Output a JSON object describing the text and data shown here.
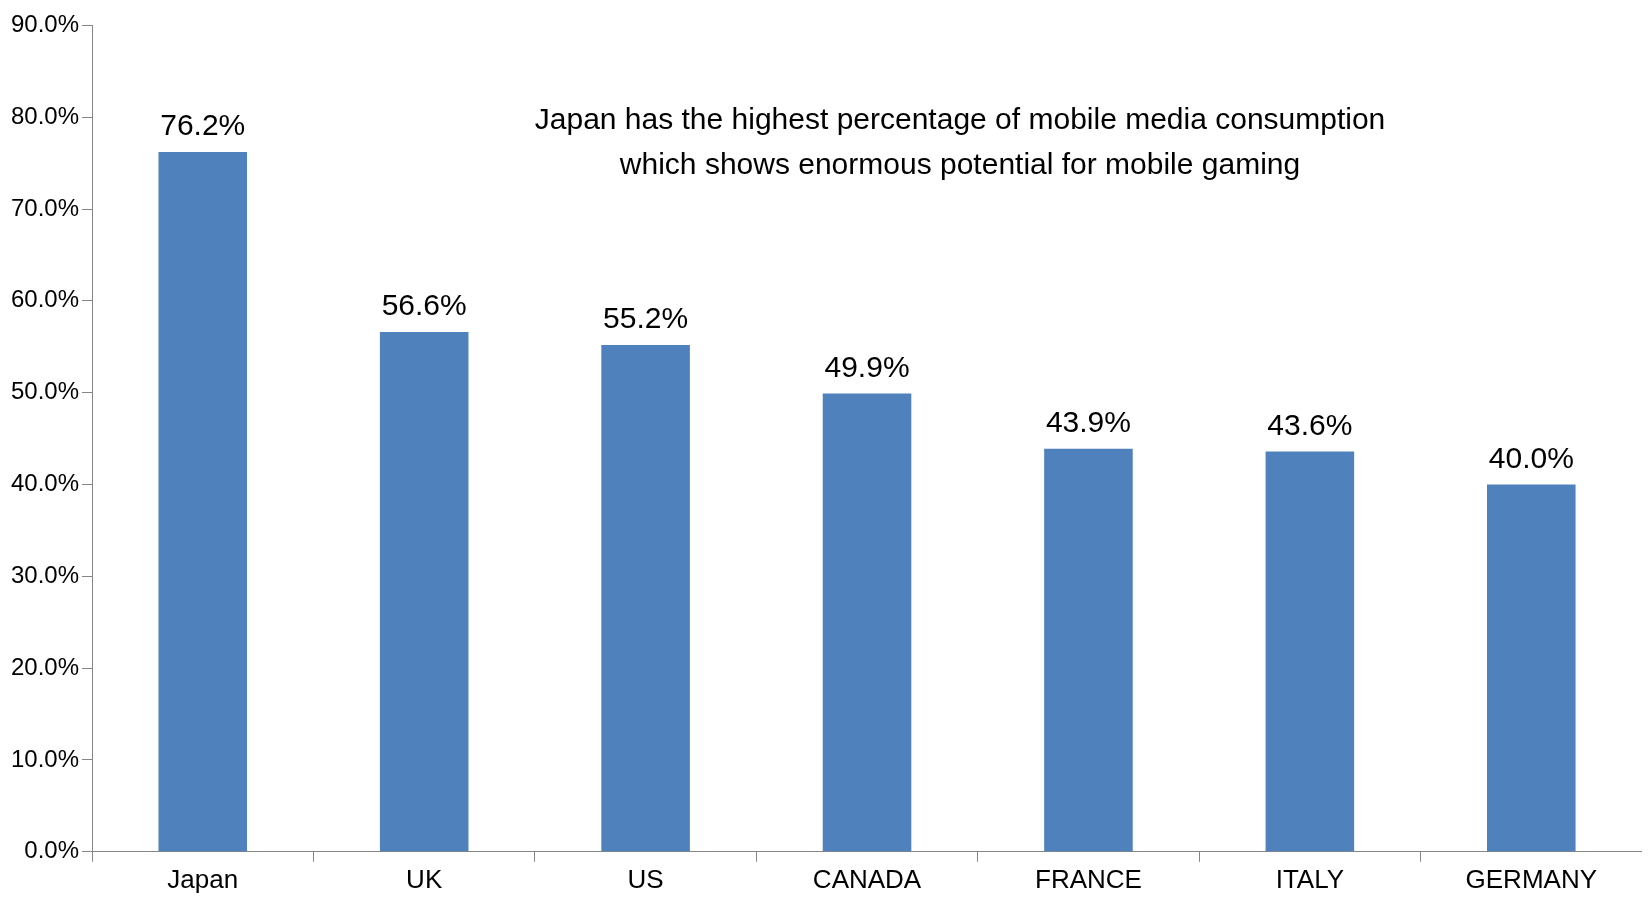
{
  "chart_data": {
    "type": "bar",
    "categories": [
      "Japan",
      "UK",
      "US",
      "CANADA",
      "FRANCE",
      "ITALY",
      "GERMANY"
    ],
    "series": [
      {
        "color": "#4f81bd",
        "values": [
          76.2,
          56.6,
          55.2,
          49.9,
          43.9,
          43.6,
          40.0
        ],
        "value_labels": [
          "76.2%",
          "56.6%",
          "55.2%",
          "49.9%",
          "43.9%",
          "43.6%",
          "40.0%"
        ]
      }
    ],
    "ylim": [
      0,
      90
    ],
    "yticks": [
      {
        "value": 0,
        "label": "0.0%"
      },
      {
        "value": 10,
        "label": "10.0%"
      },
      {
        "value": 20,
        "label": "20.0%"
      },
      {
        "value": 30,
        "label": "30.0%"
      },
      {
        "value": 40,
        "label": "40.0%"
      },
      {
        "value": 50,
        "label": "50.0%"
      },
      {
        "value": 60,
        "label": "60.0%"
      },
      {
        "value": 70,
        "label": "70.0%"
      },
      {
        "value": 80,
        "label": "80.0%"
      },
      {
        "value": 90,
        "label": "90.0%"
      }
    ],
    "annotations": [
      "Japan has the highest percentage of mobile media consumption\nwhich shows enormous potential for mobile gaming"
    ],
    "grid": false,
    "legend": false
  }
}
